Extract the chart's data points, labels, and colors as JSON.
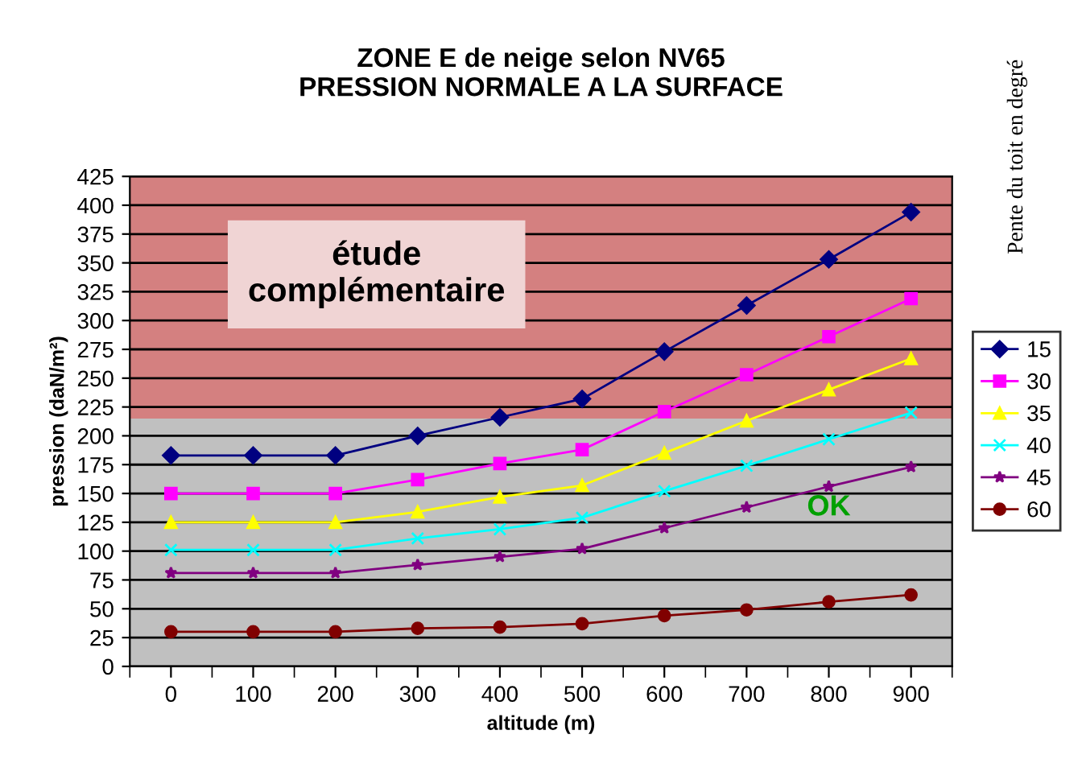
{
  "chart_data": {
    "type": "line",
    "title": "ZONE E de neige selon NV65\nPRESSION NORMALE A LA SURFACE",
    "xlabel": "altitude (m)",
    "ylabel": "pression (daN/m²)",
    "legend_title": "Pente du toit en degré",
    "categories": [
      "0",
      "100",
      "200",
      "300",
      "400",
      "500",
      "600",
      "700",
      "800",
      "900"
    ],
    "series": [
      {
        "name": "15",
        "color": "#000080",
        "marker": "diamond",
        "values": [
          183,
          183,
          183,
          200,
          216,
          232,
          273,
          313,
          353,
          394
        ]
      },
      {
        "name": "30",
        "color": "#ff00ff",
        "marker": "square",
        "values": [
          150,
          150,
          150,
          162,
          176,
          188,
          221,
          253,
          286,
          319
        ]
      },
      {
        "name": "35",
        "color": "#ffff00",
        "marker": "triangle",
        "values": [
          125,
          125,
          125,
          134,
          147,
          157,
          185,
          213,
          240,
          267
        ]
      },
      {
        "name": "40",
        "color": "#00ffff",
        "marker": "cross",
        "values": [
          101,
          101,
          101,
          111,
          119,
          129,
          152,
          174,
          197,
          220
        ]
      },
      {
        "name": "45",
        "color": "#800080",
        "marker": "star",
        "values": [
          81,
          81,
          81,
          88,
          95,
          102,
          120,
          138,
          156,
          173
        ]
      },
      {
        "name": "60",
        "color": "#800000",
        "marker": "circle",
        "values": [
          30,
          30,
          30,
          33,
          34,
          37,
          44,
          49,
          56,
          62
        ]
      }
    ],
    "bands": [
      {
        "axis": "y",
        "from": 215,
        "to": 425,
        "label": "étude\ncomplémentaire",
        "color": "#d48080"
      },
      {
        "axis": "y",
        "from": 0,
        "to": 215,
        "label": "OK",
        "color": "#c0c0c0"
      }
    ],
    "ylim": [
      0,
      425
    ],
    "yticks": [
      0,
      25,
      50,
      75,
      100,
      125,
      150,
      175,
      200,
      225,
      250,
      275,
      300,
      325,
      350,
      375,
      400,
      425
    ],
    "grid": "y",
    "legend": "right",
    "line_style": "solid"
  }
}
